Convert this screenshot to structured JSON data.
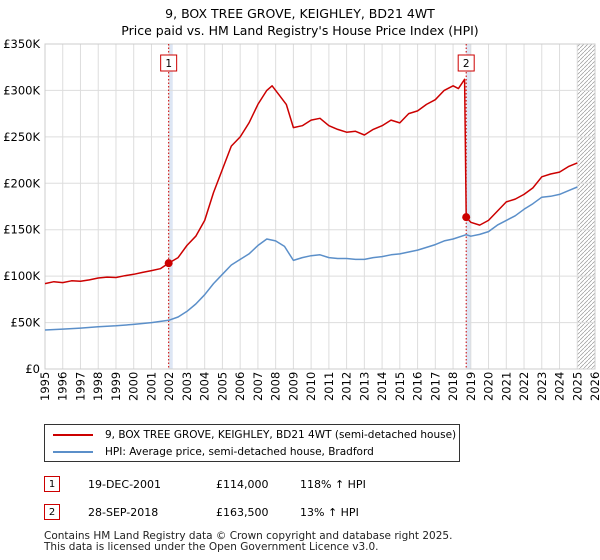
{
  "chart_data": {
    "type": "line",
    "title": "9, BOX TREE GROVE, KEIGHLEY, BD21 4WT",
    "subtitle": "Price paid vs. HM Land Registry's House Price Index (HPI)",
    "xlabel": "",
    "ylabel": "",
    "xlim": [
      1995,
      2026
    ],
    "ylim": [
      0,
      350000
    ],
    "y_ticks": [
      0,
      50000,
      100000,
      150000,
      200000,
      250000,
      300000,
      350000
    ],
    "y_tick_labels": [
      "£0",
      "£50K",
      "£100K",
      "£150K",
      "£200K",
      "£250K",
      "£300K",
      "£350K"
    ],
    "x_ticks": [
      1995,
      1996,
      1997,
      1998,
      1999,
      2000,
      2001,
      2002,
      2003,
      2004,
      2005,
      2006,
      2007,
      2008,
      2009,
      2010,
      2011,
      2012,
      2013,
      2014,
      2015,
      2016,
      2017,
      2018,
      2019,
      2020,
      2021,
      2022,
      2023,
      2024,
      2025,
      2026
    ],
    "grid": true,
    "shaded_periods": [
      [
        2001.97,
        2002.2
      ],
      [
        2018.74,
        2019.0
      ]
    ],
    "hatched_region_from": 2025.0,
    "series": [
      {
        "name": "9, BOX TREE GROVE, KEIGHLEY, BD21 4WT (semi-detached house)",
        "color": "#cc0000",
        "points": [
          [
            1995.0,
            92000
          ],
          [
            1995.5,
            94000
          ],
          [
            1996.0,
            93000
          ],
          [
            1996.5,
            95000
          ],
          [
            1997.0,
            94500
          ],
          [
            1997.5,
            96000
          ],
          [
            1998.0,
            98000
          ],
          [
            1998.5,
            99000
          ],
          [
            1999.0,
            98500
          ],
          [
            1999.5,
            100500
          ],
          [
            2000.0,
            102000
          ],
          [
            2000.5,
            104000
          ],
          [
            2001.0,
            106000
          ],
          [
            2001.5,
            108000
          ],
          [
            2001.97,
            114000
          ],
          [
            2002.5,
            120000
          ],
          [
            2003.0,
            133000
          ],
          [
            2003.5,
            143000
          ],
          [
            2004.0,
            160000
          ],
          [
            2004.5,
            190000
          ],
          [
            2005.0,
            215000
          ],
          [
            2005.5,
            240000
          ],
          [
            2006.0,
            250000
          ],
          [
            2006.5,
            265000
          ],
          [
            2007.0,
            285000
          ],
          [
            2007.5,
            300000
          ],
          [
            2007.8,
            305000
          ],
          [
            2008.2,
            295000
          ],
          [
            2008.6,
            285000
          ],
          [
            2009.0,
            260000
          ],
          [
            2009.5,
            262000
          ],
          [
            2010.0,
            268000
          ],
          [
            2010.5,
            270000
          ],
          [
            2011.0,
            262000
          ],
          [
            2011.5,
            258000
          ],
          [
            2012.0,
            255000
          ],
          [
            2012.5,
            256000
          ],
          [
            2013.0,
            252000
          ],
          [
            2013.5,
            258000
          ],
          [
            2014.0,
            262000
          ],
          [
            2014.5,
            268000
          ],
          [
            2015.0,
            265000
          ],
          [
            2015.5,
            275000
          ],
          [
            2016.0,
            278000
          ],
          [
            2016.5,
            285000
          ],
          [
            2017.0,
            290000
          ],
          [
            2017.5,
            300000
          ],
          [
            2018.0,
            305000
          ],
          [
            2018.3,
            302000
          ],
          [
            2018.65,
            312000
          ],
          [
            2018.74,
            163500
          ],
          [
            2019.0,
            158000
          ],
          [
            2019.5,
            155000
          ],
          [
            2020.0,
            160000
          ],
          [
            2020.5,
            170000
          ],
          [
            2021.0,
            180000
          ],
          [
            2021.5,
            183000
          ],
          [
            2022.0,
            188000
          ],
          [
            2022.5,
            195000
          ],
          [
            2023.0,
            207000
          ],
          [
            2023.5,
            210000
          ],
          [
            2024.0,
            212000
          ],
          [
            2024.5,
            218000
          ],
          [
            2025.0,
            222000
          ]
        ]
      },
      {
        "name": "HPI: Average price, semi-detached house, Bradford",
        "color": "#5b8fc9",
        "points": [
          [
            1995.0,
            42000
          ],
          [
            1996.0,
            43000
          ],
          [
            1997.0,
            44000
          ],
          [
            1998.0,
            45500
          ],
          [
            1999.0,
            46500
          ],
          [
            2000.0,
            48000
          ],
          [
            2001.0,
            50000
          ],
          [
            2001.97,
            52500
          ],
          [
            2002.5,
            56000
          ],
          [
            2003.0,
            62000
          ],
          [
            2003.5,
            70000
          ],
          [
            2004.0,
            80000
          ],
          [
            2004.5,
            92000
          ],
          [
            2005.0,
            102000
          ],
          [
            2005.5,
            112000
          ],
          [
            2006.0,
            118000
          ],
          [
            2006.5,
            124000
          ],
          [
            2007.0,
            133000
          ],
          [
            2007.5,
            140000
          ],
          [
            2008.0,
            138000
          ],
          [
            2008.5,
            132000
          ],
          [
            2009.0,
            117000
          ],
          [
            2009.5,
            120000
          ],
          [
            2010.0,
            122000
          ],
          [
            2010.5,
            123000
          ],
          [
            2011.0,
            120000
          ],
          [
            2011.5,
            119000
          ],
          [
            2012.0,
            119000
          ],
          [
            2012.5,
            118000
          ],
          [
            2013.0,
            118000
          ],
          [
            2013.5,
            120000
          ],
          [
            2014.0,
            121000
          ],
          [
            2014.5,
            123000
          ],
          [
            2015.0,
            124000
          ],
          [
            2015.5,
            126000
          ],
          [
            2016.0,
            128000
          ],
          [
            2016.5,
            131000
          ],
          [
            2017.0,
            134000
          ],
          [
            2017.5,
            138000
          ],
          [
            2018.0,
            140000
          ],
          [
            2018.74,
            144600
          ],
          [
            2019.0,
            143000
          ],
          [
            2019.5,
            145000
          ],
          [
            2020.0,
            148000
          ],
          [
            2020.5,
            155000
          ],
          [
            2021.0,
            160000
          ],
          [
            2021.5,
            165000
          ],
          [
            2022.0,
            172000
          ],
          [
            2022.5,
            178000
          ],
          [
            2023.0,
            185000
          ],
          [
            2023.5,
            186000
          ],
          [
            2024.0,
            188000
          ],
          [
            2024.5,
            192000
          ],
          [
            2025.0,
            196000
          ]
        ]
      }
    ],
    "annotations": [
      {
        "label": "1",
        "x": 2001.97,
        "y": 114000
      },
      {
        "label": "2",
        "x": 2018.74,
        "y": 163500
      }
    ]
  },
  "legend": {
    "property": "9, BOX TREE GROVE, KEIGHLEY, BD21 4WT (semi-detached house)",
    "hpi": "HPI: Average price, semi-detached house, Bradford"
  },
  "transactions": [
    {
      "num": "1",
      "date": "19-DEC-2001",
      "price": "£114,000",
      "hpi": "118% ↑ HPI"
    },
    {
      "num": "2",
      "date": "28-SEP-2018",
      "price": "£163,500",
      "hpi": "13% ↑ HPI"
    }
  ],
  "footer": {
    "line1": "Contains HM Land Registry data © Crown copyright and database right 2025.",
    "line2": "This data is licensed under the Open Government Licence v3.0."
  },
  "colors": {
    "property": "#cc0000",
    "hpi": "#5b8fc9",
    "grid": "#dddddd",
    "shade": "#dde6f4"
  }
}
